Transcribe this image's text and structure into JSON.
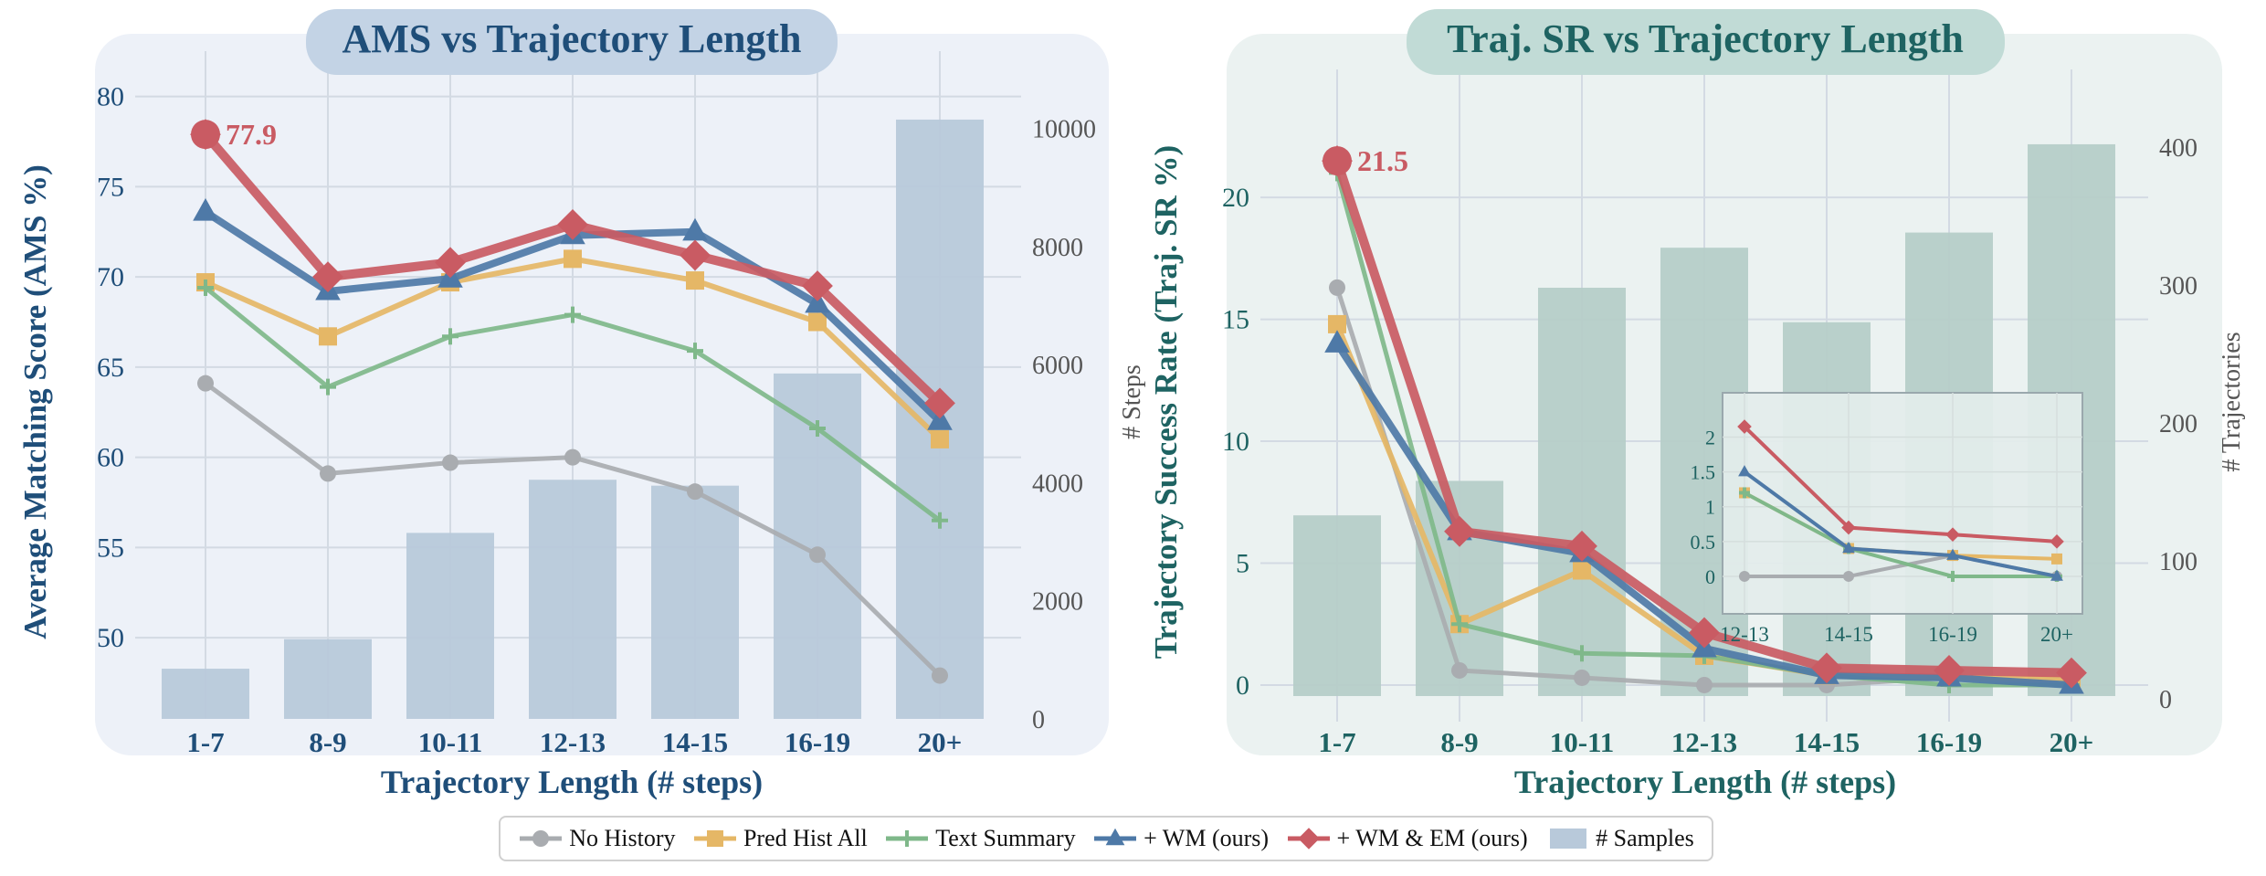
{
  "colors": {
    "no_history": "#a9acb0",
    "pred_hist_all": "#e5b766",
    "text_summary": "#7fb88a",
    "wm": "#4e79a7",
    "wm_em": "#c95b63",
    "samples_left": "#b8c9da",
    "samples_right": "#b6cdc8",
    "panel_left": "#edf1f8",
    "panel_right": "#ebf2f1",
    "title_left_bg": "#c3d3e5",
    "title_right_bg": "#c1dbd6",
    "text_left": "#1f4e79",
    "text_right": "#1e6362"
  },
  "chart_data": [
    {
      "type": "line",
      "title": "AMS vs Trajectory Length",
      "xlabel": "Trajectory Length (# steps)",
      "ylabel": "Average Matching Score (AMS %)",
      "y2label": "# Steps",
      "categories": [
        "1-7",
        "8-9",
        "10-11",
        "12-13",
        "14-15",
        "16-19",
        "20+"
      ],
      "ylim": [
        45.5,
        81.5
      ],
      "yticks": [
        50,
        55,
        60,
        65,
        70,
        75,
        80
      ],
      "y2lim": [
        0,
        11000
      ],
      "y2ticks": [
        0,
        2000,
        4000,
        6000,
        8000,
        10000
      ],
      "bars": {
        "name": "# Samples",
        "values": [
          850,
          1350,
          3150,
          4050,
          3950,
          5850,
          10150
        ]
      },
      "series": [
        {
          "key": "no_history",
          "name": "No History",
          "marker": "circle",
          "values": [
            64.1,
            59.1,
            59.7,
            60.0,
            58.1,
            54.6,
            47.9
          ]
        },
        {
          "key": "pred_hist_all",
          "name": "Pred Hist All",
          "marker": "square",
          "values": [
            69.7,
            66.7,
            69.7,
            71.0,
            69.8,
            67.5,
            61.0
          ]
        },
        {
          "key": "text_summary",
          "name": "Text Summary",
          "marker": "plus",
          "values": [
            69.4,
            63.9,
            66.7,
            67.9,
            65.9,
            61.6,
            56.5
          ]
        },
        {
          "key": "wm",
          "name": "+ WM (ours)",
          "marker": "triangle",
          "values": [
            73.6,
            69.2,
            69.9,
            72.3,
            72.5,
            68.5,
            62.0
          ]
        },
        {
          "key": "wm_em",
          "name": "+ WM & EM (ours)",
          "marker": "diamond",
          "values": [
            77.9,
            70.0,
            70.8,
            72.9,
            71.2,
            69.5,
            63.0
          ]
        }
      ],
      "annotation": {
        "label": "77.9",
        "series": "wm_em",
        "index": 0
      }
    },
    {
      "type": "line",
      "title": "Traj. SR vs Trajectory Length",
      "xlabel": "Trajectory Length (# steps)",
      "ylabel": "Trajectory Success Rate (Traj. SR %)",
      "y2label": "# Trajectories",
      "categories": [
        "1-7",
        "8-9",
        "10-11",
        "12-13",
        "14-15",
        "16-19",
        "20+"
      ],
      "ylim": [
        -1.5,
        24.5
      ],
      "yticks": [
        0,
        5,
        10,
        15,
        20
      ],
      "y2lim": [
        -16.5,
        443
      ],
      "y2ticks": [
        0,
        100,
        200,
        300,
        400
      ],
      "bars": {
        "name": "# Samples",
        "values": [
          133,
          158,
          298,
          327,
          273,
          338,
          402
        ]
      },
      "series": [
        {
          "key": "no_history",
          "name": "No History",
          "marker": "circle",
          "values": [
            16.3,
            0.6,
            0.3,
            0.0,
            0.0,
            0.3,
            0.0
          ]
        },
        {
          "key": "pred_hist_all",
          "name": "Pred Hist All",
          "marker": "square",
          "values": [
            14.8,
            2.5,
            4.7,
            1.2,
            0.4,
            0.3,
            0.25
          ]
        },
        {
          "key": "text_summary",
          "name": "Text Summary",
          "marker": "plus",
          "values": [
            21.0,
            2.5,
            1.3,
            1.2,
            0.4,
            0.0,
            0.0
          ]
        },
        {
          "key": "wm",
          "name": "+ WM (ours)",
          "marker": "triangle",
          "values": [
            14.0,
            6.3,
            5.4,
            1.5,
            0.4,
            0.3,
            0.0
          ]
        },
        {
          "key": "wm_em",
          "name": "+ WM & EM (ours)",
          "marker": "diamond",
          "values": [
            21.5,
            6.3,
            5.7,
            2.15,
            0.7,
            0.6,
            0.5
          ]
        }
      ],
      "annotation": {
        "label": "21.5",
        "series": "wm_em",
        "index": 0
      },
      "inset": {
        "categories": [
          "12-13",
          "14-15",
          "16-19",
          "20+"
        ],
        "ylim": [
          -0.25,
          2.4
        ],
        "yticks": [
          0,
          0.5,
          1,
          1.5,
          2
        ],
        "ytick_labels": [
          "0",
          "0.5",
          "1",
          "1.5",
          "2"
        ],
        "series": [
          {
            "key": "no_history",
            "values": [
              0.0,
              0.0,
              0.3,
              0.0
            ]
          },
          {
            "key": "pred_hist_all",
            "values": [
              1.2,
              0.4,
              0.3,
              0.25
            ]
          },
          {
            "key": "text_summary",
            "values": [
              1.2,
              0.4,
              0.0,
              0.0
            ]
          },
          {
            "key": "wm",
            "values": [
              1.5,
              0.4,
              0.3,
              0.0
            ]
          },
          {
            "key": "wm_em",
            "values": [
              2.15,
              0.7,
              0.6,
              0.5
            ]
          }
        ]
      }
    }
  ],
  "legend": {
    "items": [
      {
        "key": "no_history",
        "label": "No History",
        "marker": "circle"
      },
      {
        "key": "pred_hist_all",
        "label": "Pred Hist All",
        "marker": "square"
      },
      {
        "key": "text_summary",
        "label": "Text Summary",
        "marker": "plus"
      },
      {
        "key": "wm",
        "label": "+ WM (ours)",
        "marker": "triangle"
      },
      {
        "key": "wm_em",
        "label": "+ WM & EM (ours)",
        "marker": "diamond"
      },
      {
        "key": "samples",
        "label": "# Samples",
        "marker": "bar"
      }
    ]
  }
}
